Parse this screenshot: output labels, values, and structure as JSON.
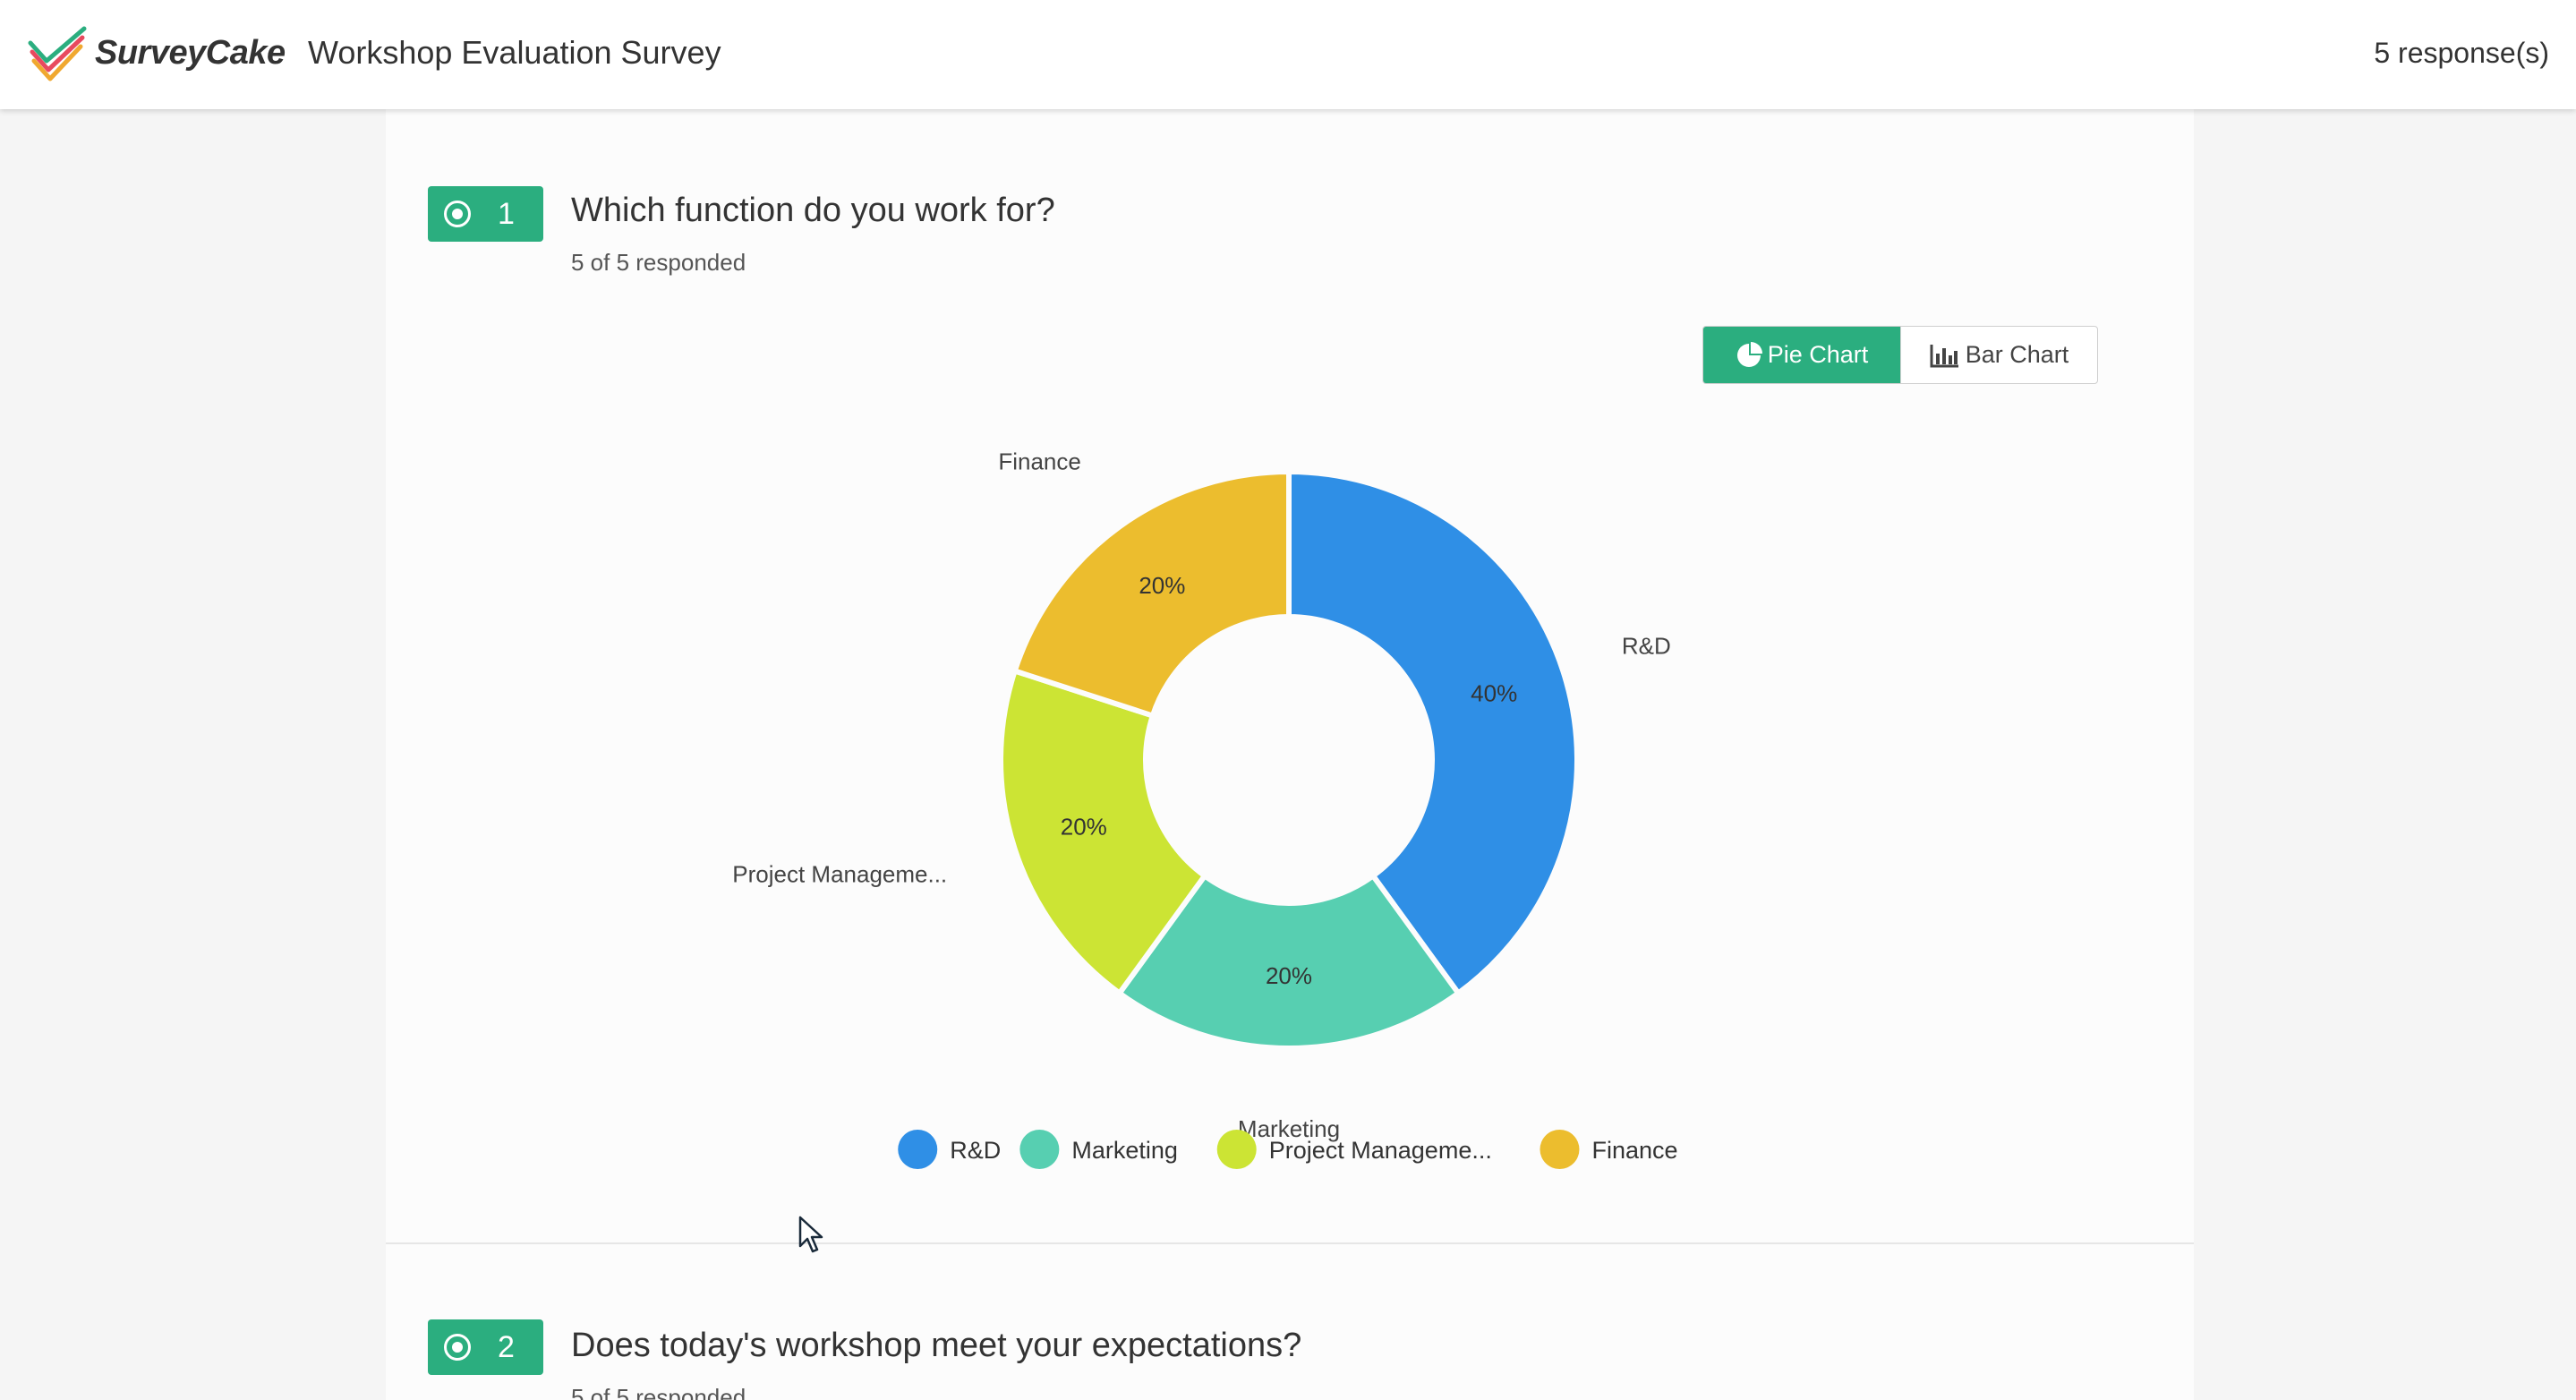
{
  "header": {
    "brand": "SurveyCake",
    "survey_title": "Workshop Evaluation Survey",
    "responses": "5 response(s)",
    "logo_icon": "surveycake-check-logo"
  },
  "questions": [
    {
      "number": "1",
      "title": "Which function do you work for?",
      "responded": "5 of 5 responded",
      "icon": "radio-icon"
    },
    {
      "number": "2",
      "title": "Does today's workshop meet your expectations?",
      "responded": "5 of 5 responded",
      "icon": "radio-icon"
    }
  ],
  "chart_toggle": {
    "pie_label": "Pie Chart",
    "bar_label": "Bar Chart",
    "active": "pie",
    "active_color": "#2bae7f"
  },
  "chart_data": {
    "type": "pie",
    "donut": true,
    "categories": [
      "R&D",
      "Marketing",
      "Project Manageme...",
      "Finance"
    ],
    "values": [
      40,
      20,
      20,
      20
    ],
    "value_labels": [
      "40%",
      "20%",
      "20%",
      "20%"
    ],
    "colors": [
      "#2f8fe6",
      "#57cfb1",
      "#cce434",
      "#ecbd2e"
    ],
    "legend": [
      "R&D",
      "Marketing",
      "Project Manageme...",
      "Finance"
    ],
    "legend_position": "bottom"
  }
}
